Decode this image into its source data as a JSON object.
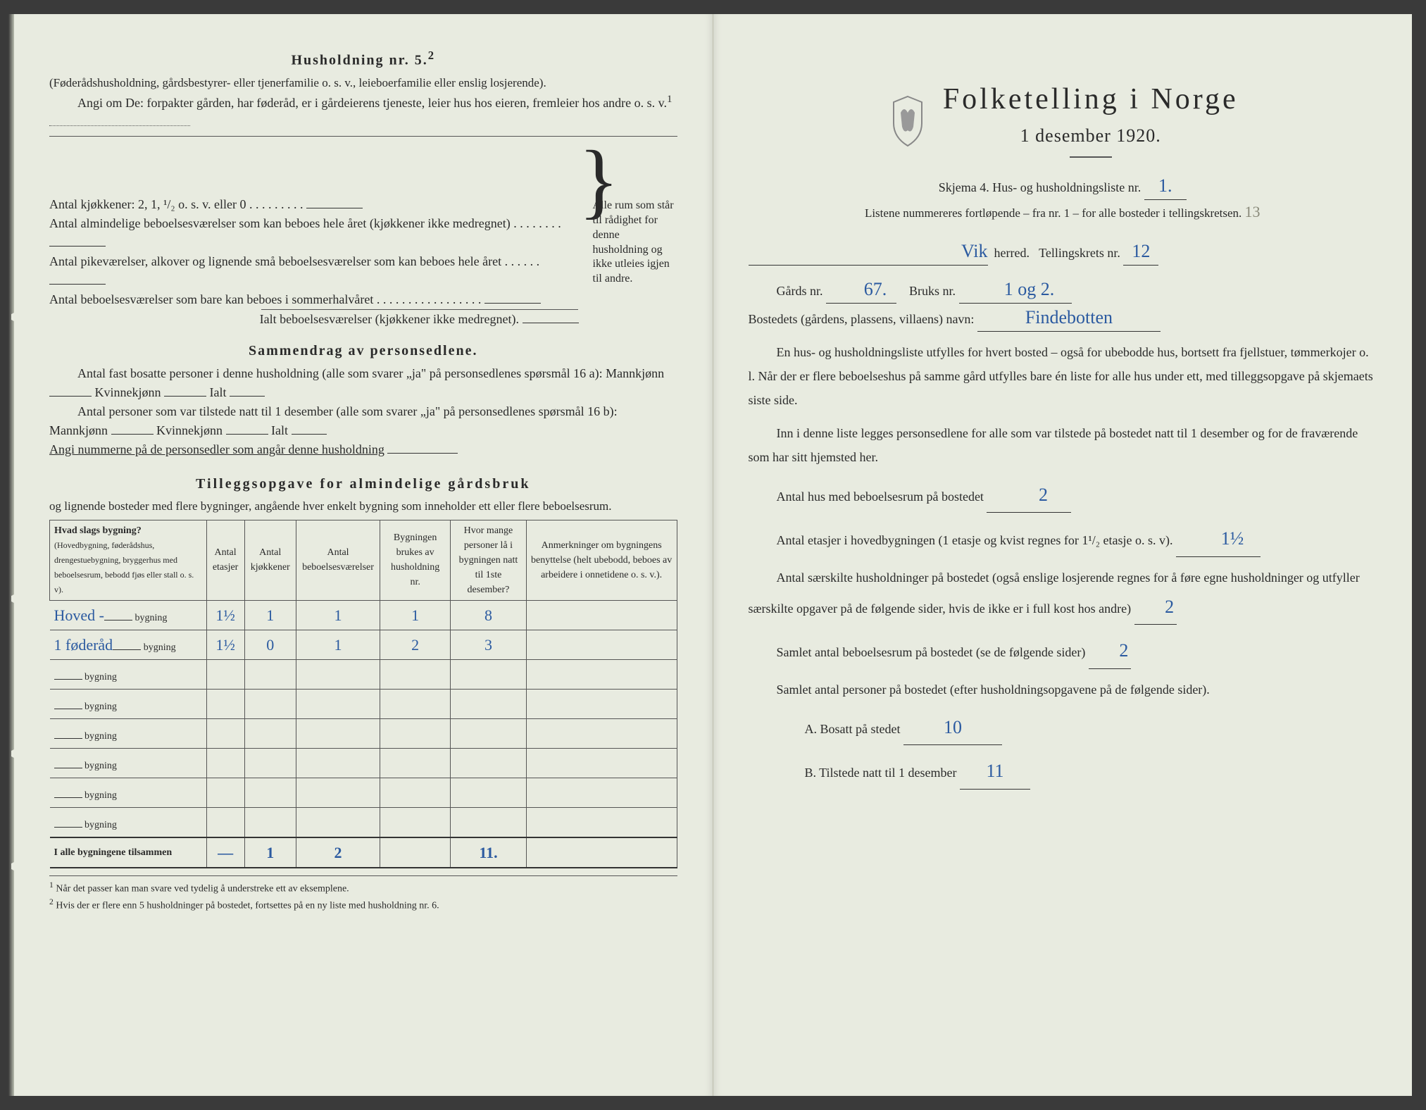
{
  "left": {
    "h5_title": "Husholdning nr. 5.",
    "h5_sup": "2",
    "h5_note": "(Føderådshusholdning, gårdsbestyrer- eller tjenerfamilie o. s. v., leieboerfamilie eller enslig losjerende).",
    "h5_q1": "Angi om De: forpakter gården, har føderåd, er i gårdeierens tjeneste, leier hus hos eieren, fremleier hos andre o. s. v.",
    "h5_q1_sup": "1",
    "rooms_k": "Antal kjøkkener: 2, 1, ¹/₂ o. s. v. eller 0",
    "rooms_a": "Antal almindelige beboelsesværelser som kan beboes hele året (kjøkkener ikke medregnet)",
    "rooms_p": "Antal pikeværelser, alkover og lignende små beboelsesværelser som kan beboes hele året",
    "rooms_s": "Antal beboelsesværelser som bare kan beboes i sommerhalvåret",
    "rooms_total": "Ialt beboelsesværelser  (kjøkkener ikke medregnet)",
    "brace_text": "Alle rum som står til rådighet for denne husholdning og ikke utleies igjen til andre.",
    "sum_title": "Sammendrag av personsedlene.",
    "sum_l1a": "Antal fast bosatte personer i denne husholdning (alle som svarer „ja\" på personsedlenes spørsmål 16 a): Mannkjønn",
    "sum_kv": "Kvinnekjønn",
    "sum_ialt": "Ialt",
    "sum_l2a": "Antal personer som var tilstede natt til 1 desember (alle som svarer „ja\" på personsedlenes spørsmål 16 b): Mannkjønn",
    "sum_l3": "Angi nummerne på de personsedler som angår denne husholdning",
    "tillegg_title": "Tilleggsopgave for almindelige gårdsbruk",
    "tillegg_sub": "og lignende bosteder med flere bygninger, angående hver enkelt bygning som inneholder ett eller flere beboelsesrum.",
    "th1": "Hvad slags bygning?",
    "th1_sub": "(Hovedbygning, føderådshus, drengestuebygning, bryggerhus med beboelsesrum, bebodd fjøs eller stall o. s. v).",
    "th2": "Antal etasjer",
    "th3": "Antal kjøkkener",
    "th4": "Antal beboelsesværelser",
    "th5": "Bygningen brukes av husholdning nr.",
    "th6": "Hvor mange personer lå i bygningen natt til 1ste desember?",
    "th7": "Anmerkninger om bygningens benyttelse (helt ubebodd, beboes av arbeidere i onnetidene o. s. v.).",
    "row_suffix": "bygning",
    "rows": [
      {
        "name": "Hoved -",
        "et": "1½",
        "kj": "1",
        "bv": "1",
        "hn": "1",
        "pers": "8"
      },
      {
        "name": "1 føderåd",
        "et": "1½",
        "kj": "0",
        "bv": "1",
        "hn": "2",
        "pers": "3"
      },
      {
        "name": "",
        "et": "",
        "kj": "",
        "bv": "",
        "hn": "",
        "pers": ""
      },
      {
        "name": "",
        "et": "",
        "kj": "",
        "bv": "",
        "hn": "",
        "pers": ""
      },
      {
        "name": "",
        "et": "",
        "kj": "",
        "bv": "",
        "hn": "",
        "pers": ""
      },
      {
        "name": "",
        "et": "",
        "kj": "",
        "bv": "",
        "hn": "",
        "pers": ""
      },
      {
        "name": "",
        "et": "",
        "kj": "",
        "bv": "",
        "hn": "",
        "pers": ""
      },
      {
        "name": "",
        "et": "",
        "kj": "",
        "bv": "",
        "hn": "",
        "pers": ""
      }
    ],
    "total_label": "I alle bygningene tilsammen",
    "total": {
      "et": "—",
      "kj": "1",
      "bv": "2",
      "hn": "",
      "pers": "11."
    },
    "fn1": "Når det passer kan man svare ved tydelig å understreke ett av eksemplene.",
    "fn2": "Hvis der er flere enn 5 husholdninger på bostedet, fortsettes på en ny liste med husholdning nr. 6."
  },
  "right": {
    "title": "Folketelling i Norge",
    "subtitle": "1 desember 1920.",
    "skjema": "Skjema 4.  Hus- og husholdningsliste nr.",
    "skjema_val": "1.",
    "listnote": "Listene nummereres fortløpende – fra nr. 1 – for alle bosteder i tellingskretsen.",
    "listnote_val": "13",
    "herred_val": "Vik",
    "herred_lbl": "herred.",
    "krets_lbl": "Tellingskrets nr.",
    "krets_val": "12",
    "gard_lbl": "Gårds nr.",
    "gard_val": "67.",
    "bruk_lbl": "Bruks nr.",
    "bruk_val": "1 og 2.",
    "bosted_lbl": "Bostedets (gårdens, plassens, villaens) navn:",
    "bosted_val": "Findebotten",
    "intro1": "En hus- og husholdningsliste utfylles for hvert bosted – også for ubebodde hus, bortsett fra fjellstuer, tømmerkojer o. l.  Når der er flere beboelseshus på samme gård utfylles bare én liste for alle hus under ett, med tilleggsopgave på skjemaets siste side.",
    "intro2": "Inn i denne liste legges personsedlene for alle som var tilstede på bostedet natt til 1 desember og for de fraværende som har sitt hjemsted her.",
    "q1": "Antal hus med beboelsesrum på bostedet",
    "q1_val": "2",
    "q2a": "Antal etasjer i hovedbygningen (1 etasje og kvist regnes for 1¹/₂ etasje o. s. v).",
    "q2_val": "1½",
    "q3": "Antal særskilte husholdninger på bostedet (også enslige losjerende regnes for å føre egne husholdninger og utfyller særskilte opgaver på de følgende sider, hvis de ikke er i full kost hos andre)",
    "q3_val": "2",
    "q4": "Samlet antal beboelsesrum på bostedet (se de følgende sider)",
    "q4_val": "2",
    "q5": "Samlet antal personer på bostedet (efter husholdningsopgavene på de følgende sider).",
    "qA": "A.  Bosatt på stedet",
    "qA_val": "10",
    "qB": "B.  Tilstede natt til 1 desember",
    "qB_val": "11"
  }
}
